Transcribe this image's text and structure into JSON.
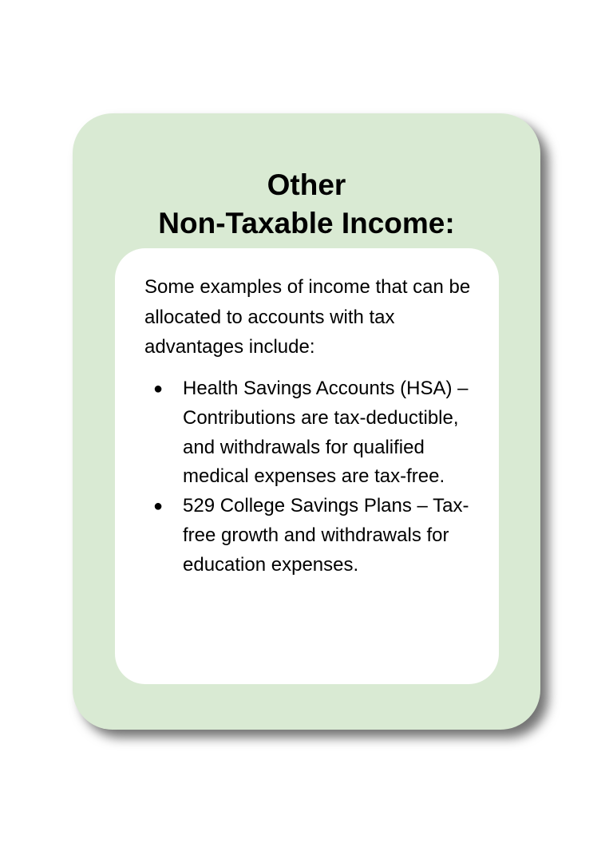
{
  "card": {
    "title_line1": "Other",
    "title_line2": "Non-Taxable Income:",
    "intro": "Some examples of income that can be allocated to accounts with tax advantages include:",
    "bullets": [
      {
        "marker": "●",
        "text": "Health Savings Accounts (HSA) – Contributions are tax-deductible, and withdrawals for qualified medical expenses are tax-free."
      },
      {
        "marker": "●",
        "text": "529 College Savings Plans – Tax-free growth and withdrawals for education expenses."
      }
    ]
  },
  "colors": {
    "card_background": "#d9ead3",
    "inner_background": "#ffffff",
    "text": "#000000"
  }
}
